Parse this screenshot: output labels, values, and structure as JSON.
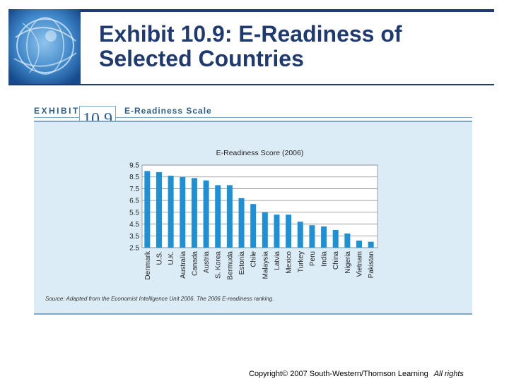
{
  "slide": {
    "title": "Exhibit 10.9: E-Readiness of Selected Countries",
    "copyright": "Copyright© 2007 South-Western/Thomson Learning",
    "rights": "All rights"
  },
  "exhibit": {
    "label": "EXHIBIT",
    "number": "10.9",
    "caption": "E-Readiness Scale",
    "source": "Source:  Adapted from the Economist Intelligence Unit 2006. The 2006 E-readiness ranking."
  },
  "colors": {
    "bar": "#1e90d6",
    "panel": "#dcecf6",
    "title": "#1f3a70"
  },
  "chart_data": {
    "type": "bar",
    "title": "E-Readiness Score (2006)",
    "xlabel": "",
    "ylabel": "",
    "ylim": [
      2.5,
      9.5
    ],
    "yticks": [
      "9.5",
      "8.5",
      "7.5",
      "6.5",
      "5.5",
      "4.5",
      "3.5",
      "2.5"
    ],
    "grid": true,
    "categories": [
      "Denmark",
      "U.S.",
      "U.K.",
      "Australia",
      "Canada",
      "Austria",
      "S. Korea",
      "Bermuda",
      "Estonia",
      "Chile",
      "Malaysia",
      "Latvia",
      "Mexico",
      "Turkey",
      "Peru",
      "India",
      "China",
      "Nigeria",
      "Vietnam",
      "Pakistan"
    ],
    "values": [
      9.0,
      8.9,
      8.6,
      8.5,
      8.4,
      8.2,
      7.8,
      7.8,
      6.7,
      6.2,
      5.5,
      5.3,
      5.3,
      4.7,
      4.4,
      4.3,
      4.0,
      3.7,
      3.1,
      3.0
    ]
  }
}
